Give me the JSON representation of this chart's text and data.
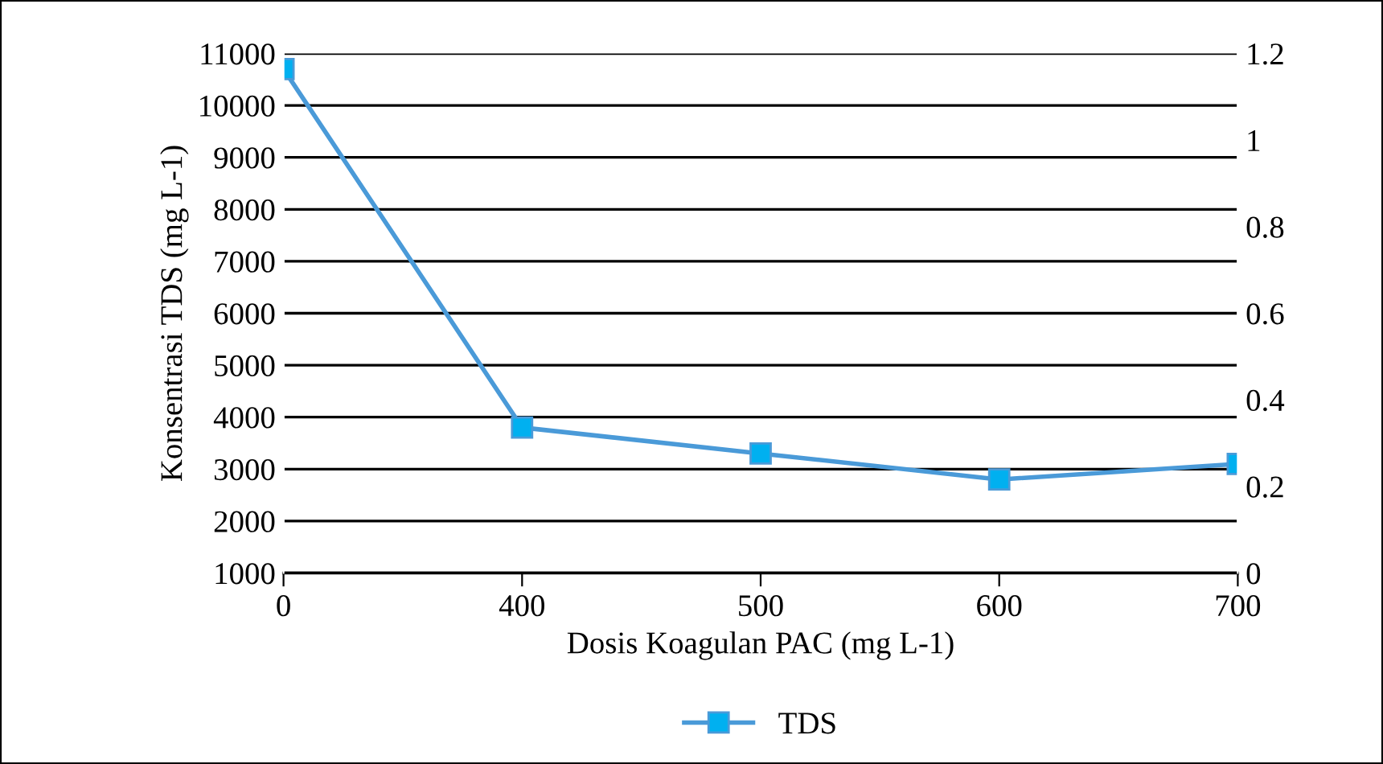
{
  "chart_data": {
    "type": "line",
    "xlabel": "Dosis Koagulan PAC (mg L-1)",
    "ylabel": "Konsentrasi TDS (mg L-1)",
    "categories": [
      "0",
      "400",
      "500",
      "600",
      "700"
    ],
    "series": [
      {
        "name": "TDS",
        "color": "#4a9ad8",
        "values": [
          10700,
          3800,
          3300,
          2800,
          3100
        ]
      }
    ],
    "ylim": [
      1000,
      11000
    ],
    "yticks": [
      1000,
      2000,
      3000,
      4000,
      5000,
      6000,
      7000,
      8000,
      9000,
      10000,
      11000
    ],
    "y2lim": [
      0,
      1.2
    ],
    "y2ticks": [
      0,
      0.2,
      0.4,
      0.6,
      0.8,
      1,
      1.2
    ],
    "grid": "y",
    "legend": "bottom",
    "marker": "square",
    "line_style": "solid"
  }
}
